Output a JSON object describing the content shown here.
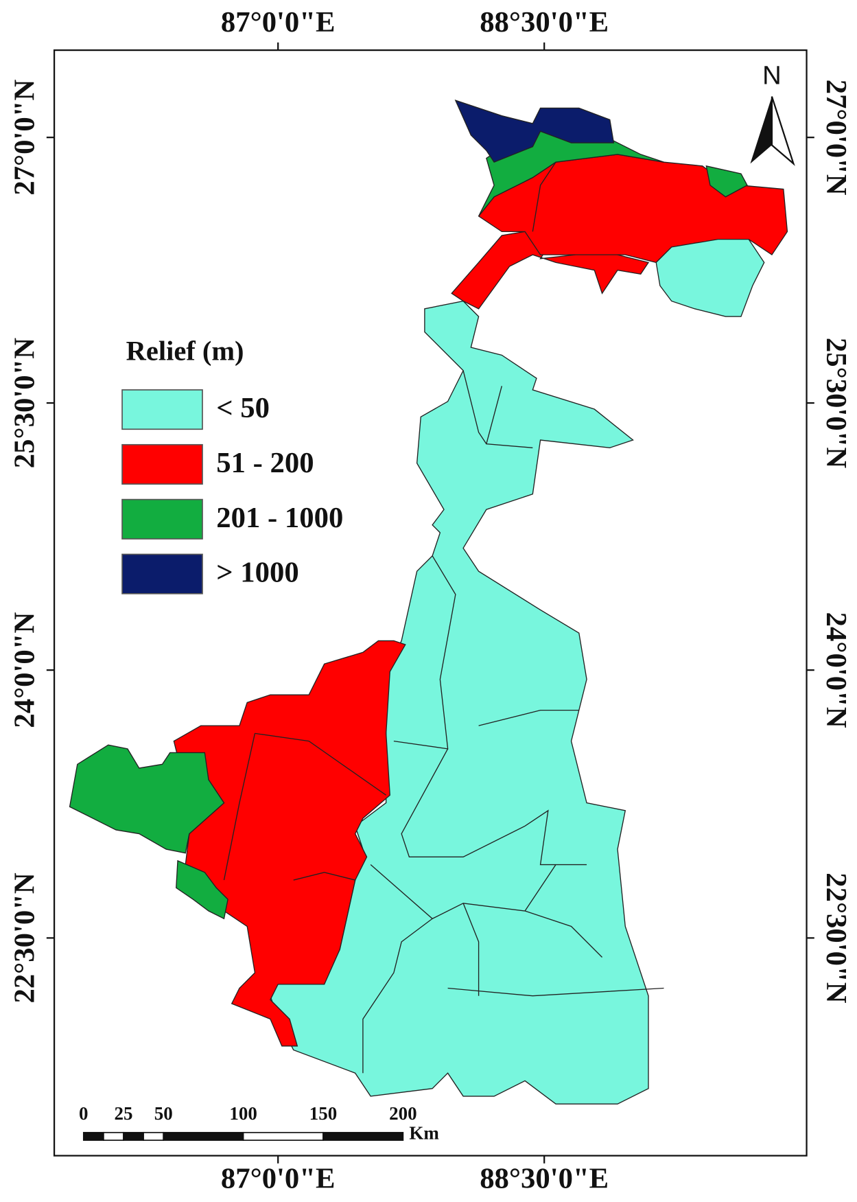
{
  "map": {
    "graticule": {
      "longitudes": [
        "87°0'0\"E",
        "88°30'0\"E"
      ],
      "latitudes": [
        "27°0'0\"N",
        "25°30'0\"N",
        "24°0'0\"N",
        "22°30'0\"N"
      ]
    },
    "north": "N",
    "legend": {
      "title": "Relief (m)",
      "items": [
        {
          "label": "< 50",
          "color": "#78f6dd"
        },
        {
          "label": "51 - 200",
          "color": "#ff0000"
        },
        {
          "label": "201 - 1000",
          "color": "#12ad40"
        },
        {
          "label": "> 1000",
          "color": "#0b1c6b"
        }
      ]
    },
    "scale_bar": {
      "ticks": [
        0,
        25,
        50,
        100,
        150,
        200
      ],
      "unit": "Km"
    }
  }
}
